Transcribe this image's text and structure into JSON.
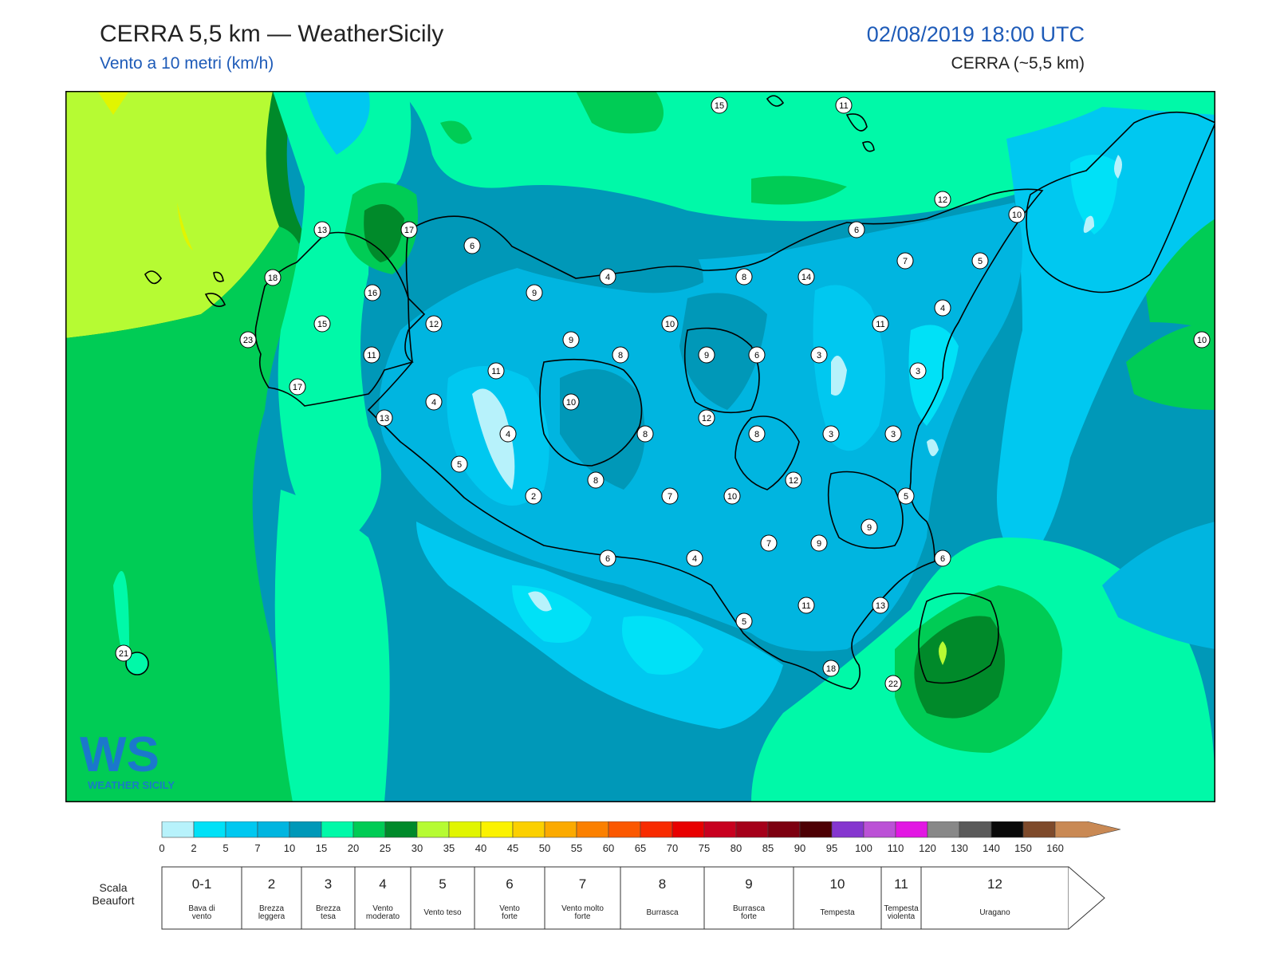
{
  "header": {
    "title": "CERRA 5,5 km — WeatherSicily",
    "subtitle": "Vento a 10 metri (km/h)",
    "datetime": "02/08/2019 18:00 UTC",
    "model": "CERRA (~5,5 km)"
  },
  "station_values": [
    15,
    11,
    12,
    10,
    13,
    17,
    6,
    6,
    18,
    16,
    9,
    4,
    8,
    14,
    7,
    5,
    10,
    15,
    12,
    11,
    4,
    23,
    9,
    10,
    11,
    8,
    9,
    6,
    3,
    3,
    11,
    17,
    4,
    10,
    13,
    12,
    4,
    8,
    8,
    3,
    3,
    5,
    8,
    2,
    7,
    12,
    10,
    5,
    9,
    7,
    9,
    6,
    6,
    4,
    5,
    11,
    13,
    21,
    18,
    22
  ],
  "legend": {
    "scale_ticks": [
      "0",
      "2",
      "5",
      "7",
      "10",
      "15",
      "20",
      "25",
      "30",
      "35",
      "40",
      "45",
      "50",
      "55",
      "60",
      "65",
      "70",
      "75",
      "80",
      "85",
      "90",
      "95",
      "100",
      "110",
      "120",
      "130",
      "140",
      "150",
      "160"
    ],
    "scale_colors": [
      "#b7f2fb",
      "#00e1f7",
      "#00c8f0",
      "#00b5e0",
      "#0098b8",
      "#00f9a8",
      "#00cc55",
      "#008a2a",
      "#b6fb33",
      "#e1f500",
      "#fbf200",
      "#fbd000",
      "#fbaa00",
      "#fb8000",
      "#fb5800",
      "#f82b00",
      "#e80000",
      "#c8001f",
      "#a5001a",
      "#7d0010",
      "#4d0004",
      "#8536cf",
      "#bb51d6",
      "#e217e3",
      "#888888",
      "#5a5a5a",
      "#0a0a0a",
      "#7e4a2b",
      "#c98954"
    ],
    "beaufort_title": "Scala\nBeaufort",
    "beaufort": [
      {
        "num": "0-1",
        "desc": "Bava di\nvento"
      },
      {
        "num": "2",
        "desc": "Brezza\nleggera"
      },
      {
        "num": "3",
        "desc": "Brezza\ntesa"
      },
      {
        "num": "4",
        "desc": "Vento\nmoderato"
      },
      {
        "num": "5",
        "desc": "Vento teso"
      },
      {
        "num": "6",
        "desc": "Vento\nforte"
      },
      {
        "num": "7",
        "desc": "Vento molto\nforte"
      },
      {
        "num": "8",
        "desc": "Burrasca"
      },
      {
        "num": "9",
        "desc": "Burrasca\nforte"
      },
      {
        "num": "10",
        "desc": "Tempesta"
      },
      {
        "num": "11",
        "desc": "Tempesta\nviolenta"
      },
      {
        "num": "12",
        "desc": "Uragano"
      }
    ]
  },
  "logo": {
    "mark": "WS",
    "text": "WEATHER SICILY"
  },
  "colors": {
    "c_light": "#b7f2fb",
    "c_cyan": "#00e1f7",
    "c_sky": "#00c8f0",
    "c_blue": "#00b5e0",
    "c_teal": "#0098b8",
    "c_mint": "#00f9a8",
    "c_green": "#00cc55",
    "c_dark": "#008a2a",
    "c_lime": "#b6fb33",
    "c_yellow": "#e1f500",
    "title_blue": "#1e5bb8"
  }
}
